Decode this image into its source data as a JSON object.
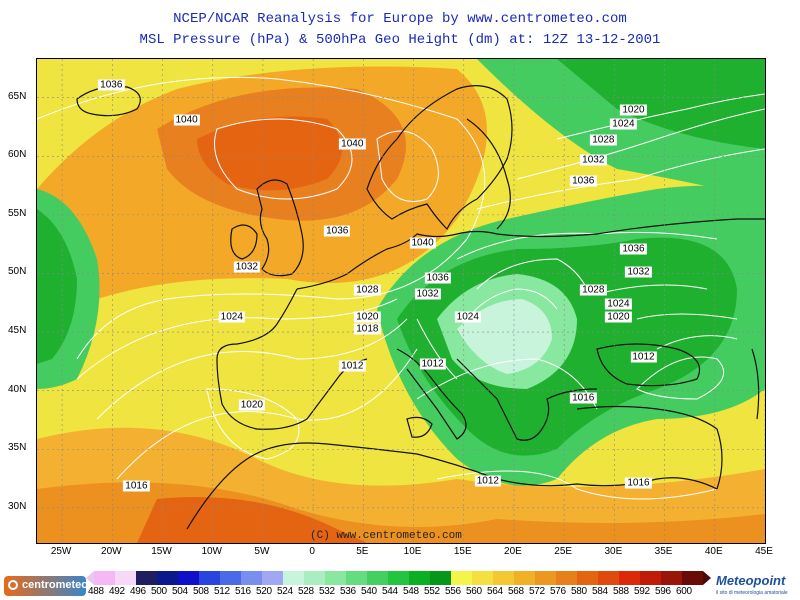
{
  "header": {
    "title": "NCEP/NCAR Reanalysis for Europe by www.centrometeo.com",
    "subtitle": "MSL Pressure (hPa) & 500hPa Geo Height (dm) at: 12Z 13-12-2001"
  },
  "axes": {
    "lat_labels": [
      "65N",
      "60N",
      "55N",
      "50N",
      "45N",
      "40N",
      "35N",
      "30N"
    ],
    "lon_labels": [
      "25W",
      "20W",
      "15W",
      "10W",
      "5W",
      "0",
      "5E",
      "10E",
      "15E",
      "20E",
      "25E",
      "30E",
      "35E",
      "40E",
      "45E"
    ]
  },
  "isobars": [
    {
      "value": "1036",
      "lon": -20,
      "lat": 66
    },
    {
      "value": "1040",
      "lon": -12.5,
      "lat": 63
    },
    {
      "value": "1040",
      "lon": 4,
      "lat": 61
    },
    {
      "value": "1036",
      "lon": 2.5,
      "lat": 53.5
    },
    {
      "value": "1032",
      "lon": -6.5,
      "lat": 50.5
    },
    {
      "value": "1024",
      "lon": -8,
      "lat": 46.2
    },
    {
      "value": "1028",
      "lon": 5.5,
      "lat": 48.5
    },
    {
      "value": "1020",
      "lon": 5.5,
      "lat": 46.2
    },
    {
      "value": "1018",
      "lon": 5.5,
      "lat": 45.2
    },
    {
      "value": "1040",
      "lon": 11,
      "lat": 52.5
    },
    {
      "value": "1036",
      "lon": 12.5,
      "lat": 49.5
    },
    {
      "value": "1032",
      "lon": 11.5,
      "lat": 48.2
    },
    {
      "value": "1024",
      "lon": 15.5,
      "lat": 46.2
    },
    {
      "value": "1012",
      "lon": 4,
      "lat": 42
    },
    {
      "value": "1012",
      "lon": 12,
      "lat": 42.2
    },
    {
      "value": "1020",
      "lon": -6,
      "lat": 38.7
    },
    {
      "value": "1016",
      "lon": -17.5,
      "lat": 31.8
    },
    {
      "value": "1012",
      "lon": 17.5,
      "lat": 32.2
    },
    {
      "value": "1016",
      "lon": 27,
      "lat": 39.3
    },
    {
      "value": "1016",
      "lon": 32.5,
      "lat": 32
    },
    {
      "value": "1012",
      "lon": 33,
      "lat": 42.8
    },
    {
      "value": "1028",
      "lon": 28,
      "lat": 48.5
    },
    {
      "value": "1024",
      "lon": 30.5,
      "lat": 47.3
    },
    {
      "value": "1020",
      "lon": 30.5,
      "lat": 46.2
    },
    {
      "value": "1032",
      "lon": 32.5,
      "lat": 50
    },
    {
      "value": "1036",
      "lon": 32,
      "lat": 52
    },
    {
      "value": "1036",
      "lon": 27,
      "lat": 57.8
    },
    {
      "value": "1032",
      "lon": 28,
      "lat": 59.6
    },
    {
      "value": "1028",
      "lon": 29,
      "lat": 61.3
    },
    {
      "value": "1024",
      "lon": 31,
      "lat": 62.7
    },
    {
      "value": "1020",
      "lon": 32,
      "lat": 63.9
    }
  ],
  "legend": {
    "values": [
      "488",
      "492",
      "496",
      "500",
      "504",
      "508",
      "512",
      "516",
      "520",
      "524",
      "528",
      "532",
      "536",
      "540",
      "544",
      "548",
      "552",
      "556",
      "560",
      "564",
      "568",
      "572",
      "576",
      "580",
      "584",
      "588",
      "592",
      "596",
      "600"
    ],
    "colors": [
      "#f4b8f4",
      "#f8d8f8",
      "#1e1e60",
      "#0a1a8c",
      "#1010c8",
      "#2a44e0",
      "#4a6ae8",
      "#7a8ef0",
      "#a0a8f4",
      "#c8f4dc",
      "#a8eec0",
      "#88e8a0",
      "#66dc80",
      "#44d060",
      "#22c440",
      "#0ab022",
      "#06961a",
      "#f4f44a",
      "#f4e040",
      "#f4c832",
      "#f0b028",
      "#ec9820",
      "#e8801a",
      "#e46412",
      "#e04a0c",
      "#dc2a08",
      "#c01c08",
      "#9a1408",
      "#6a0c06"
    ]
  },
  "copyright": "(C) www.centrometeo.com",
  "logos": {
    "left": "centrometeo",
    "right": "Meteopoint",
    "right_sub": "il sito di meteorologia amatoriale"
  },
  "map_colors": {
    "ocean": "#f0e440",
    "gpt_576": "#f4a828",
    "gpt_580": "#e88020",
    "gpt_584": "#e46412",
    "gpt_556": "#20b030",
    "gpt_552": "#44cc60",
    "gpt_548": "#a8eec0",
    "coast": "#111111",
    "isoline": "#ffffff"
  }
}
